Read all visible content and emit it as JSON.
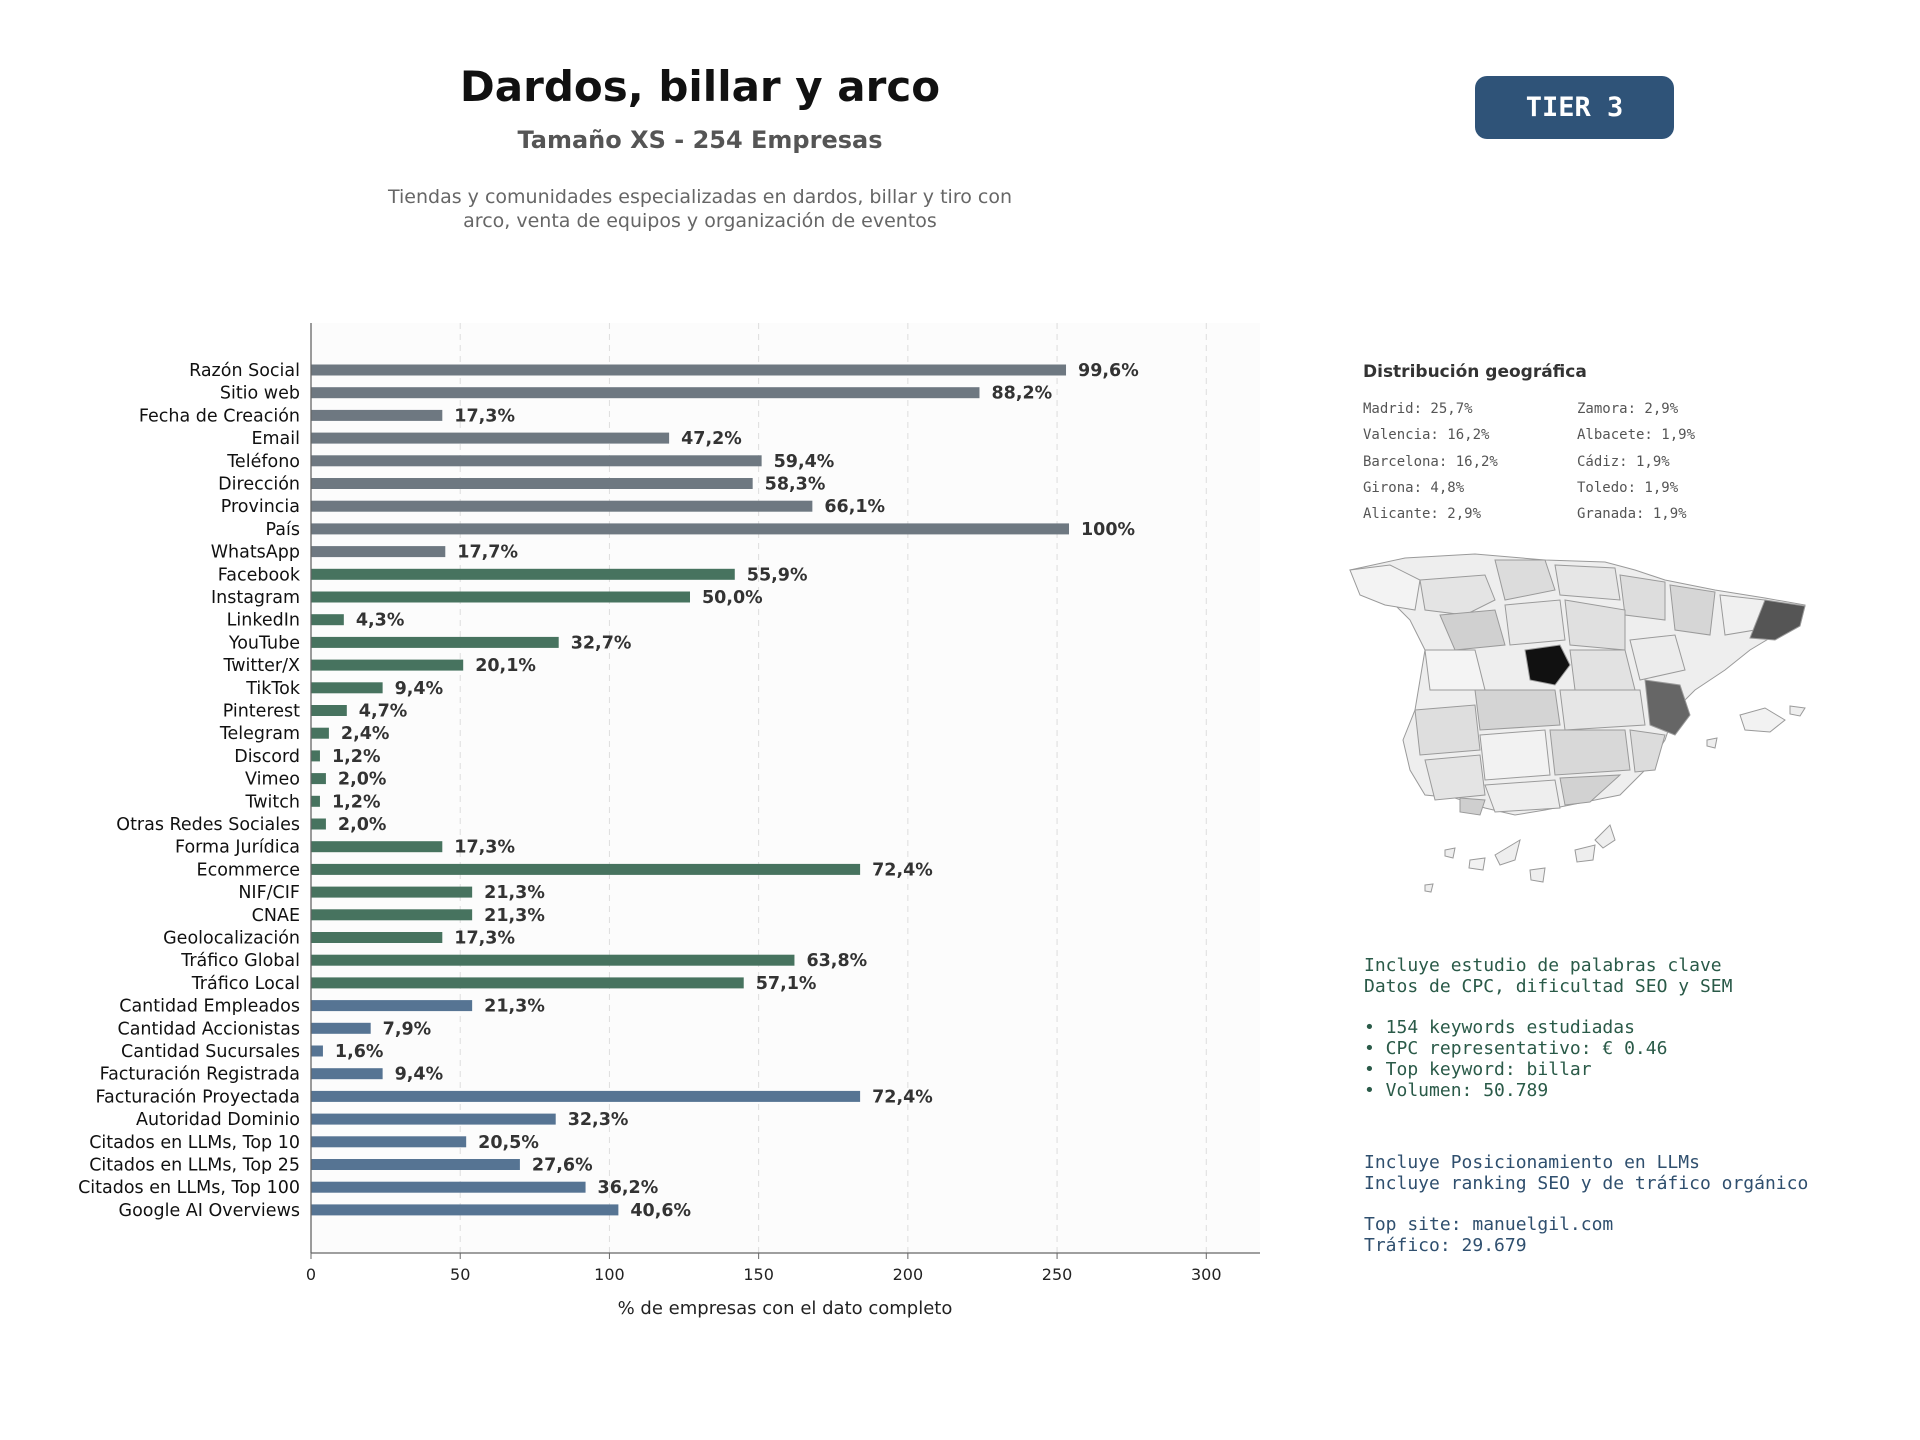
{
  "header": {
    "title": "Dardos, billar y arco",
    "subtitle": "Tamaño XS - 254 Empresas",
    "description_line1": "Tiendas y comunidades especializadas en dardos, billar y tiro con",
    "description_line2": "arco, venta de equipos y organización de eventos",
    "tier_badge": "TIER 3"
  },
  "colors": {
    "gray_bar": "#6e7881",
    "green_bar": "#47735f",
    "blue_bar": "#567493",
    "badge": "#2f5378"
  },
  "chart_data": {
    "type": "bar",
    "orientation": "horizontal",
    "xlabel": "% de empresas con el dato completo",
    "xlim": [
      0,
      318
    ],
    "xticks": [
      0,
      50,
      100,
      150,
      200,
      250,
      300
    ],
    "grid": "x-dashed",
    "categories": [
      "Razón Social",
      "Sitio web",
      "Fecha de Creación",
      "Email",
      "Teléfono",
      "Dirección",
      "Provincia",
      "País",
      "WhatsApp",
      "Facebook",
      "Instagram",
      "LinkedIn",
      "YouTube",
      "Twitter/X",
      "TikTok",
      "Pinterest",
      "Telegram",
      "Discord",
      "Vimeo",
      "Twitch",
      "Otras Redes Sociales",
      "Forma Jurídica",
      "Ecommerce",
      "NIF/CIF",
      "CNAE",
      "Geolocalización",
      "Tráfico Global",
      "Tráfico Local",
      "Cantidad Empleados",
      "Cantidad Accionistas",
      "Cantidad Sucursales",
      "Facturación Registrada",
      "Facturación Proyectada",
      "Autoridad Dominio",
      "Citados en LLMs, Top 10",
      "Citados en LLMs, Top 25",
      "Citados en LLMs, Top 100",
      "Google AI Overviews"
    ],
    "values": [
      253,
      224,
      44,
      120,
      151,
      148,
      168,
      254,
      45,
      142,
      127,
      11,
      83,
      51,
      24,
      12,
      6,
      3,
      5,
      3,
      5,
      44,
      184,
      54,
      54,
      44,
      162,
      145,
      54,
      20,
      4,
      24,
      184,
      82,
      52,
      70,
      92,
      103
    ],
    "labels": [
      "99,6%",
      "88,2%",
      "17,3%",
      "47,2%",
      "59,4%",
      "58,3%",
      "66,1%",
      "100%",
      "17,7%",
      "55,9%",
      "50,0%",
      "4,3%",
      "32,7%",
      "20,1%",
      "9,4%",
      "4,7%",
      "2,4%",
      "1,2%",
      "2,0%",
      "1,2%",
      "2,0%",
      "17,3%",
      "72,4%",
      "21,3%",
      "21,3%",
      "17,3%",
      "63,8%",
      "57,1%",
      "21,3%",
      "7,9%",
      "1,6%",
      "9,4%",
      "72,4%",
      "32,3%",
      "20,5%",
      "27,6%",
      "36,2%",
      "40,6%"
    ],
    "groups": [
      "gray",
      "gray",
      "gray",
      "gray",
      "gray",
      "gray",
      "gray",
      "gray",
      "gray",
      "green",
      "green",
      "green",
      "green",
      "green",
      "green",
      "green",
      "green",
      "green",
      "green",
      "green",
      "green",
      "green",
      "green",
      "green",
      "green",
      "green",
      "green",
      "green",
      "blue",
      "blue",
      "blue",
      "blue",
      "blue",
      "blue",
      "blue",
      "blue",
      "blue",
      "blue"
    ]
  },
  "geo": {
    "title": "Distribución geográfica",
    "items_left": [
      "Madrid: 25,7%",
      "Valencia: 16,2%",
      "Barcelona: 16,2%",
      "Girona: 4,8%",
      "Alicante: 2,9%"
    ],
    "items_right": [
      "Zamora: 2,9%",
      "Albacete: 1,9%",
      "Cádiz: 1,9%",
      "Toledo: 1,9%",
      "Granada: 1,9%"
    ]
  },
  "seo": {
    "line1": "Incluye estudio de palabras clave",
    "line2": "Datos de CPC, dificultad SEO y SEM",
    "bullet1": "• 154 keywords estudiadas",
    "bullet2": "• CPC representativo: € 0.46",
    "bullet3": "• Top keyword: billar",
    "bullet4": "• Volumen: 50.789"
  },
  "llm": {
    "line1": "Incluye Posicionamiento en LLMs",
    "line2": "Incluye ranking SEO y de tráfico orgánico",
    "top_site": "Top site: manuelgil.com",
    "traffic": "Tráfico: 29.679"
  }
}
